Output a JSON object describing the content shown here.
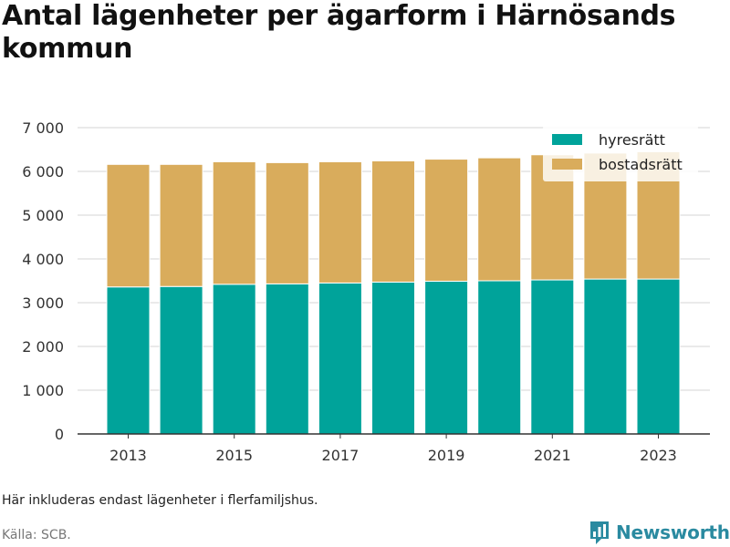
{
  "title": "Antal lägenheter per ägarform i Härnösands kommun",
  "note": "Här inkluderas endast lägenheter i flerfamiljshus.",
  "source": "Källa: SCB.",
  "brand": "Newsworthy",
  "colors": {
    "hyresratt": "#00a39a",
    "bostadsratt": "#d9ac5c",
    "grid": "#dddddd",
    "axis": "#333333",
    "brand": "#2a8aa0"
  },
  "chart_data": {
    "type": "bar",
    "stacked": true,
    "categories": [
      "2013",
      "2014",
      "2015",
      "2016",
      "2017",
      "2018",
      "2019",
      "2020",
      "2021",
      "2022",
      "2023"
    ],
    "x_tick_labels": [
      "2013",
      "2015",
      "2017",
      "2019",
      "2021",
      "2023"
    ],
    "y_ticks": [
      0,
      1000,
      2000,
      3000,
      4000,
      5000,
      6000,
      7000
    ],
    "y_tick_labels": [
      "0",
      "1 000",
      "2 000",
      "3 000",
      "4 000",
      "5 000",
      "6 000",
      "7 000"
    ],
    "ylim": [
      0,
      7000
    ],
    "grid": true,
    "legend_position": "top-right",
    "series": [
      {
        "name": "hyresrätt",
        "values": [
          3360,
          3370,
          3420,
          3430,
          3450,
          3470,
          3490,
          3500,
          3520,
          3540,
          3540
        ]
      },
      {
        "name": "bostadsrätt",
        "values": [
          2800,
          2790,
          2800,
          2770,
          2770,
          2770,
          2790,
          2810,
          2860,
          2880,
          2910
        ]
      }
    ]
  }
}
